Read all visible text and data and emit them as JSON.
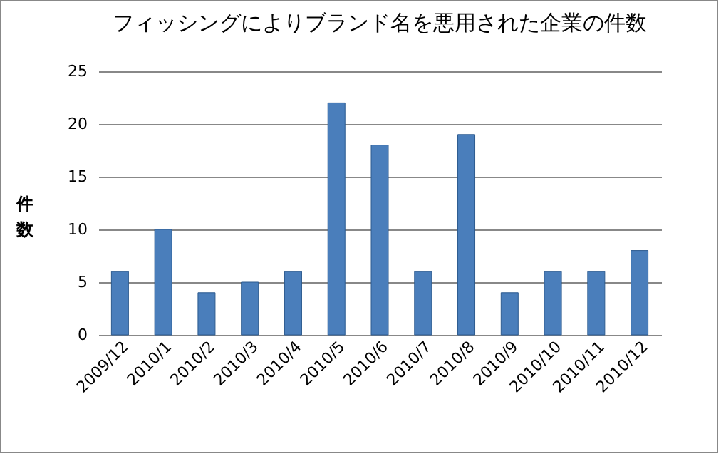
{
  "chart_data": {
    "type": "bar",
    "title": "フィッシングによりブランド名を悪用された企業の件数",
    "ylabel": "件数",
    "categories": [
      "2009/12",
      "2010/1",
      "2010/2",
      "2010/3",
      "2010/4",
      "2010/5",
      "2010/6",
      "2010/7",
      "2010/8",
      "2010/9",
      "2010/10",
      "2010/11",
      "2010/12"
    ],
    "values": [
      6,
      10,
      4,
      5,
      6,
      22,
      18,
      6,
      19,
      4,
      6,
      6,
      8
    ],
    "color": "#4a7ebb",
    "ylim": [
      0,
      25
    ],
    "yticks": [
      0,
      5,
      10,
      15,
      20,
      25
    ],
    "grid": "y"
  }
}
